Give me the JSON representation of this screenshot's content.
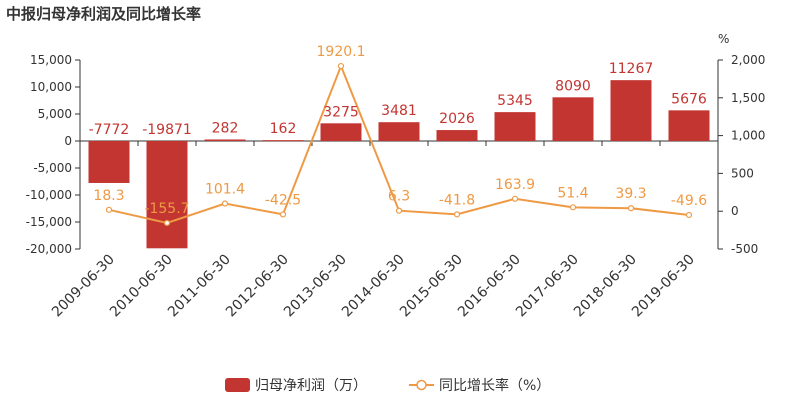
{
  "chart_data": {
    "type": "bar",
    "title": "中报归母净利润及同比增长率",
    "categories": [
      "2009-06-30",
      "2010-06-30",
      "2011-06-30",
      "2012-06-30",
      "2013-06-30",
      "2014-06-30",
      "2015-06-30",
      "2016-06-30",
      "2017-06-30",
      "2018-06-30",
      "2019-06-30"
    ],
    "series": [
      {
        "name": "归母净利润（万）",
        "type": "bar",
        "axis": "left",
        "color": "#c23531",
        "values": [
          -7772,
          -19871,
          282,
          162,
          3275,
          3481,
          2026,
          5345,
          8090,
          11267,
          5676
        ],
        "labels": [
          "-7772",
          "-19871",
          "282",
          "162",
          "3275",
          "3481",
          "2026",
          "5345",
          "8090",
          "11267",
          "5676"
        ]
      },
      {
        "name": "同比增长率（%）",
        "type": "line",
        "axis": "right",
        "color": "#ee9a45",
        "values": [
          18.3,
          -155.7,
          101.4,
          -42.5,
          1920.1,
          6.3,
          -41.8,
          163.9,
          51.4,
          39.3,
          -49.6
        ],
        "labels": [
          "18.3",
          "-155.7",
          "101.4",
          "-42.5",
          "1920.1",
          "6.3",
          "-41.8",
          "163.9",
          "51.4",
          "39.3",
          "-49.6"
        ]
      }
    ],
    "y_left": {
      "min": -20000,
      "max": 15000,
      "ticks": [
        -20000,
        -15000,
        -10000,
        -5000,
        0,
        5000,
        10000,
        15000
      ],
      "tick_labels": [
        "-20,000",
        "-15,000",
        "-10,000",
        "-5,000",
        "0",
        "5,000",
        "10,000",
        "15,000"
      ]
    },
    "y_right": {
      "min": -500,
      "max": 2000,
      "ticks": [
        -500,
        0,
        500,
        1000,
        1500,
        2000
      ],
      "tick_labels": [
        "-500",
        "0",
        "500",
        "1,000",
        "1,500",
        "2,000"
      ],
      "unit": "%"
    },
    "grid": false,
    "legend": "bottom-center"
  }
}
